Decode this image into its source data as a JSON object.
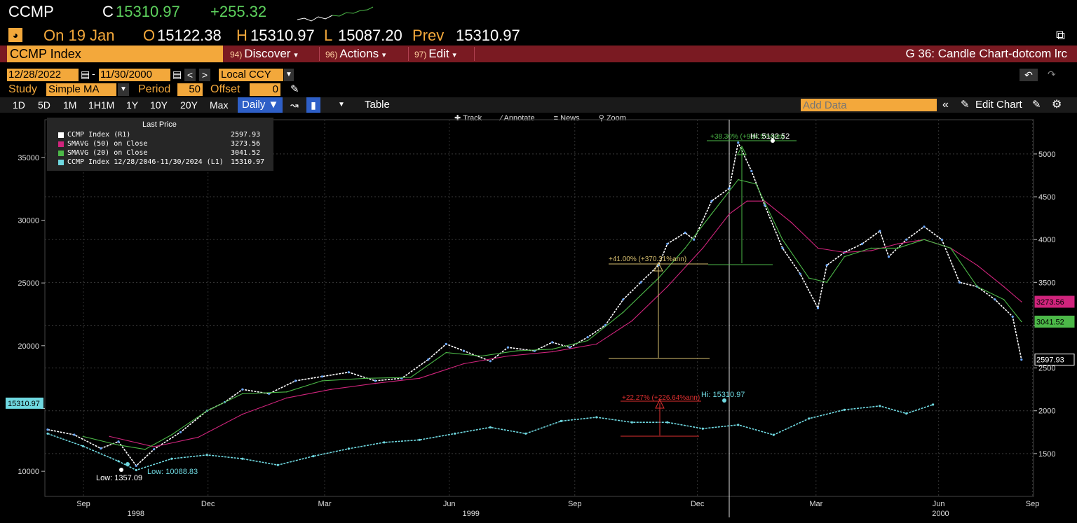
{
  "header": {
    "ticker": "CCMP",
    "close_label": "C",
    "close": "15310.97",
    "change": "+255.32",
    "on_label": "On 19 Jan",
    "open_label": "O",
    "open": "15122.38",
    "high_label": "H",
    "high": "15310.97",
    "low_label": "L",
    "low": "15087.20",
    "prev_label": "Prev",
    "prev": "15310.97"
  },
  "menubar": {
    "security": "CCMP Index",
    "discover_num": "94)",
    "discover": "Discover",
    "actions_num": "96)",
    "actions": "Actions",
    "edit_num": "97)",
    "edit": "Edit",
    "chart_title": "G 36: Candle Chart-dotcom lrc"
  },
  "range": {
    "start": "12/28/2022",
    "end": "11/30/2000",
    "currency": "Local CCY"
  },
  "study": {
    "label": "Study",
    "value": "Simple MA",
    "period_label": "Period",
    "period": "50",
    "offset_label": "Offset",
    "offset": "0"
  },
  "tabs": {
    "items": [
      "1D",
      "5D",
      "1M",
      "1H1M",
      "1Y",
      "10Y",
      "20Y",
      "Max"
    ],
    "frequency": "Daily ▼",
    "table": "Table",
    "add_data_placeholder": "Add Data",
    "edit_chart": "Edit Chart"
  },
  "tools": {
    "track": "Track",
    "annotate": "Annotate",
    "news": "News",
    "zoom": "Zoom"
  },
  "legend": {
    "title": "Last Price",
    "rows": [
      {
        "name": "CCMP Index  (R1)",
        "value": "2597.93",
        "color": "#ffffff"
      },
      {
        "name": "SMAVG (50)  on Close",
        "value": "3273.56",
        "color": "#d0247c"
      },
      {
        "name": "SMAVG (20)  on Close",
        "value": "3041.52",
        "color": "#4cb848"
      },
      {
        "name": "CCMP Index 12/28/2046-11/30/2024  (L1)",
        "value": "15310.97",
        "color": "#6fd8e0"
      }
    ]
  },
  "chart_data": {
    "type": "line",
    "left_axis": {
      "ticks": [
        10000,
        15000,
        20000,
        25000,
        30000,
        35000
      ],
      "tick_labels": [
        "10000",
        "",
        "20000",
        "25000",
        "30000",
        "35000"
      ],
      "ylim": [
        8000,
        38000
      ],
      "current_label": "15310.97"
    },
    "right_axis": {
      "ticks": [
        1500,
        2000,
        2500,
        3000,
        3500,
        4000,
        4500,
        5000
      ],
      "tick_labels": [
        "1500",
        "2000",
        "2500",
        "",
        "3500",
        "4000",
        "4500",
        "5000"
      ],
      "ylim": [
        1000,
        5400
      ],
      "labels": [
        {
          "text": "3273.56",
          "value": 3273.56,
          "color": "#d0247c"
        },
        {
          "text": "3041.52",
          "value": 3041.52,
          "color": "#4cb848"
        },
        {
          "text": "2597.93",
          "value": 2597.93,
          "color": "#ffffff"
        }
      ]
    },
    "x_labels": [
      {
        "text": "Sep",
        "pos": 0.039
      },
      {
        "text": "Dec",
        "pos": 0.165
      },
      {
        "text": "Mar",
        "pos": 0.283
      },
      {
        "text": "Jun",
        "pos": 0.409
      },
      {
        "text": "Sep",
        "pos": 0.536
      },
      {
        "text": "Dec",
        "pos": 0.66
      },
      {
        "text": "Mar",
        "pos": 0.78
      },
      {
        "text": "Jun",
        "pos": 0.904
      },
      {
        "text": "Sep",
        "pos": 0.999
      }
    ],
    "year_labels": [
      {
        "text": "1998",
        "pos": 0.092
      },
      {
        "text": "1999",
        "pos": 0.431
      },
      {
        "text": "2000",
        "pos": 0.906
      }
    ],
    "series": [
      {
        "name": "CCMP Index (R1)",
        "axis": "right",
        "color": "#ffffff",
        "points": [
          [
            0,
            1780
          ],
          [
            0.03,
            1720
          ],
          [
            0.06,
            1560
          ],
          [
            0.08,
            1640
          ],
          [
            0.1,
            1357.09
          ],
          [
            0.12,
            1550
          ],
          [
            0.15,
            1750
          ],
          [
            0.18,
            2000
          ],
          [
            0.2,
            2100
          ],
          [
            0.22,
            2250
          ],
          [
            0.25,
            2200
          ],
          [
            0.28,
            2350
          ],
          [
            0.31,
            2400
          ],
          [
            0.34,
            2450
          ],
          [
            0.37,
            2350
          ],
          [
            0.4,
            2380
          ],
          [
            0.43,
            2600
          ],
          [
            0.45,
            2780
          ],
          [
            0.47,
            2700
          ],
          [
            0.5,
            2580
          ],
          [
            0.52,
            2740
          ],
          [
            0.55,
            2700
          ],
          [
            0.57,
            2800
          ],
          [
            0.59,
            2740
          ],
          [
            0.61,
            2860
          ],
          [
            0.63,
            3000
          ],
          [
            0.65,
            3300
          ],
          [
            0.67,
            3500
          ],
          [
            0.69,
            3700
          ],
          [
            0.7,
            3950
          ],
          [
            0.72,
            4080
          ],
          [
            0.73,
            4000
          ],
          [
            0.75,
            4450
          ],
          [
            0.77,
            4600
          ],
          [
            0.78,
            5132.52
          ],
          [
            0.795,
            4800
          ],
          [
            0.81,
            4400
          ],
          [
            0.83,
            3900
          ],
          [
            0.85,
            3600
          ],
          [
            0.87,
            3200
          ],
          [
            0.88,
            3700
          ],
          [
            0.9,
            3850
          ],
          [
            0.92,
            3950
          ],
          [
            0.94,
            4100
          ],
          [
            0.95,
            3800
          ],
          [
            0.97,
            4000
          ],
          [
            0.99,
            4150
          ],
          [
            1.01,
            4000
          ],
          [
            1.03,
            3500
          ],
          [
            1.05,
            3450
          ],
          [
            1.07,
            3300
          ],
          [
            1.09,
            3100
          ],
          [
            1.1,
            2597.93
          ]
        ]
      },
      {
        "name": "SMAVG (50) on Close",
        "axis": "right",
        "color": "#d0247c",
        "points": [
          [
            0.07,
            1700
          ],
          [
            0.12,
            1580
          ],
          [
            0.17,
            1690
          ],
          [
            0.22,
            1960
          ],
          [
            0.27,
            2150
          ],
          [
            0.32,
            2250
          ],
          [
            0.37,
            2320
          ],
          [
            0.42,
            2380
          ],
          [
            0.47,
            2550
          ],
          [
            0.52,
            2640
          ],
          [
            0.57,
            2690
          ],
          [
            0.62,
            2780
          ],
          [
            0.66,
            3050
          ],
          [
            0.7,
            3450
          ],
          [
            0.74,
            3900
          ],
          [
            0.77,
            4300
          ],
          [
            0.79,
            4450
          ],
          [
            0.81,
            4450
          ],
          [
            0.84,
            4200
          ],
          [
            0.87,
            3900
          ],
          [
            0.9,
            3850
          ],
          [
            0.93,
            3870
          ],
          [
            0.96,
            3950
          ],
          [
            0.99,
            4000
          ],
          [
            1.02,
            3900
          ],
          [
            1.05,
            3700
          ],
          [
            1.08,
            3450
          ],
          [
            1.1,
            3273.56
          ]
        ]
      },
      {
        "name": "SMAVG (20) on Close",
        "axis": "right",
        "color": "#4cb848",
        "points": [
          [
            0.04,
            1700
          ],
          [
            0.08,
            1600
          ],
          [
            0.11,
            1550
          ],
          [
            0.14,
            1720
          ],
          [
            0.18,
            2000
          ],
          [
            0.22,
            2200
          ],
          [
            0.27,
            2220
          ],
          [
            0.31,
            2350
          ],
          [
            0.36,
            2380
          ],
          [
            0.41,
            2390
          ],
          [
            0.45,
            2680
          ],
          [
            0.49,
            2640
          ],
          [
            0.53,
            2700
          ],
          [
            0.57,
            2720
          ],
          [
            0.61,
            2820
          ],
          [
            0.65,
            3150
          ],
          [
            0.69,
            3550
          ],
          [
            0.72,
            3900
          ],
          [
            0.75,
            4300
          ],
          [
            0.78,
            4700
          ],
          [
            0.8,
            4650
          ],
          [
            0.83,
            4000
          ],
          [
            0.86,
            3550
          ],
          [
            0.88,
            3500
          ],
          [
            0.9,
            3800
          ],
          [
            0.93,
            3900
          ],
          [
            0.96,
            3900
          ],
          [
            0.99,
            4000
          ],
          [
            1.02,
            3900
          ],
          [
            1.05,
            3450
          ],
          [
            1.08,
            3300
          ],
          [
            1.1,
            3041.52
          ]
        ]
      },
      {
        "name": "CCMP Index 12/28/2046-11/30/2024 (L1)",
        "axis": "left",
        "color": "#6fd8e0",
        "points": [
          [
            0,
            13000
          ],
          [
            0.04,
            12000
          ],
          [
            0.08,
            10800
          ],
          [
            0.1,
            10088.83
          ],
          [
            0.14,
            11000
          ],
          [
            0.18,
            11300
          ],
          [
            0.22,
            11000
          ],
          [
            0.26,
            10500
          ],
          [
            0.3,
            11200
          ],
          [
            0.34,
            11800
          ],
          [
            0.38,
            12300
          ],
          [
            0.42,
            12500
          ],
          [
            0.46,
            13000
          ],
          [
            0.5,
            13500
          ],
          [
            0.54,
            13000
          ],
          [
            0.58,
            14000
          ],
          [
            0.62,
            14300
          ],
          [
            0.66,
            13900
          ],
          [
            0.7,
            13900
          ],
          [
            0.74,
            13400
          ],
          [
            0.78,
            13700
          ],
          [
            0.82,
            12900
          ],
          [
            0.86,
            14200
          ],
          [
            0.9,
            14900
          ],
          [
            0.94,
            15200
          ],
          [
            0.97,
            14600
          ],
          [
            1.0,
            15310.97
          ]
        ]
      }
    ],
    "annotations": [
      {
        "text": "+38.30% (+984.5%ann)",
        "color": "#4cb848"
      },
      {
        "text": "Hi: 5132.52",
        "color": "#ffffff"
      },
      {
        "text": "+41.00% (+370.31%ann)",
        "color": "#d8c070"
      },
      {
        "text": "+22.27% (+226.64%ann)",
        "color": "#e03030"
      },
      {
        "text": "Hi: 15310.97",
        "color": "#6fd8e0"
      },
      {
        "text": "Low: 1357.09",
        "color": "#ffffff"
      },
      {
        "text": "Low: 10088.83",
        "color": "#6fd8e0"
      }
    ],
    "grid": true
  }
}
